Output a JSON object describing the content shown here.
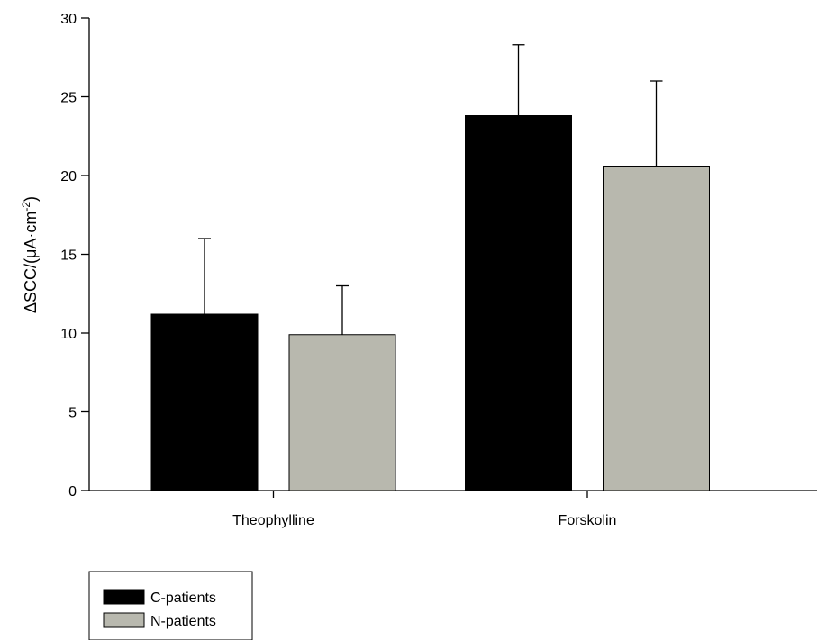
{
  "chart_data": {
    "type": "bar",
    "categories": [
      "Theophylline",
      "Forskolin"
    ],
    "series": [
      {
        "name": "C-patients",
        "values": [
          11.2,
          23.8
        ],
        "errors": [
          4.8,
          4.5
        ],
        "color": "#000000"
      },
      {
        "name": "N-patients",
        "values": [
          9.9,
          20.6
        ],
        "errors": [
          3.1,
          5.4
        ],
        "color": "#b8b8ae"
      }
    ],
    "ylabel": {
      "main": "ΔSCC/(μA·cm",
      "sup": "-2",
      "close": ")"
    },
    "yticks": [
      "0",
      "5",
      "10",
      "15",
      "20",
      "25",
      "30"
    ],
    "ylim": [
      0,
      30
    ],
    "grid": false,
    "legend_position": "bottom-left"
  }
}
